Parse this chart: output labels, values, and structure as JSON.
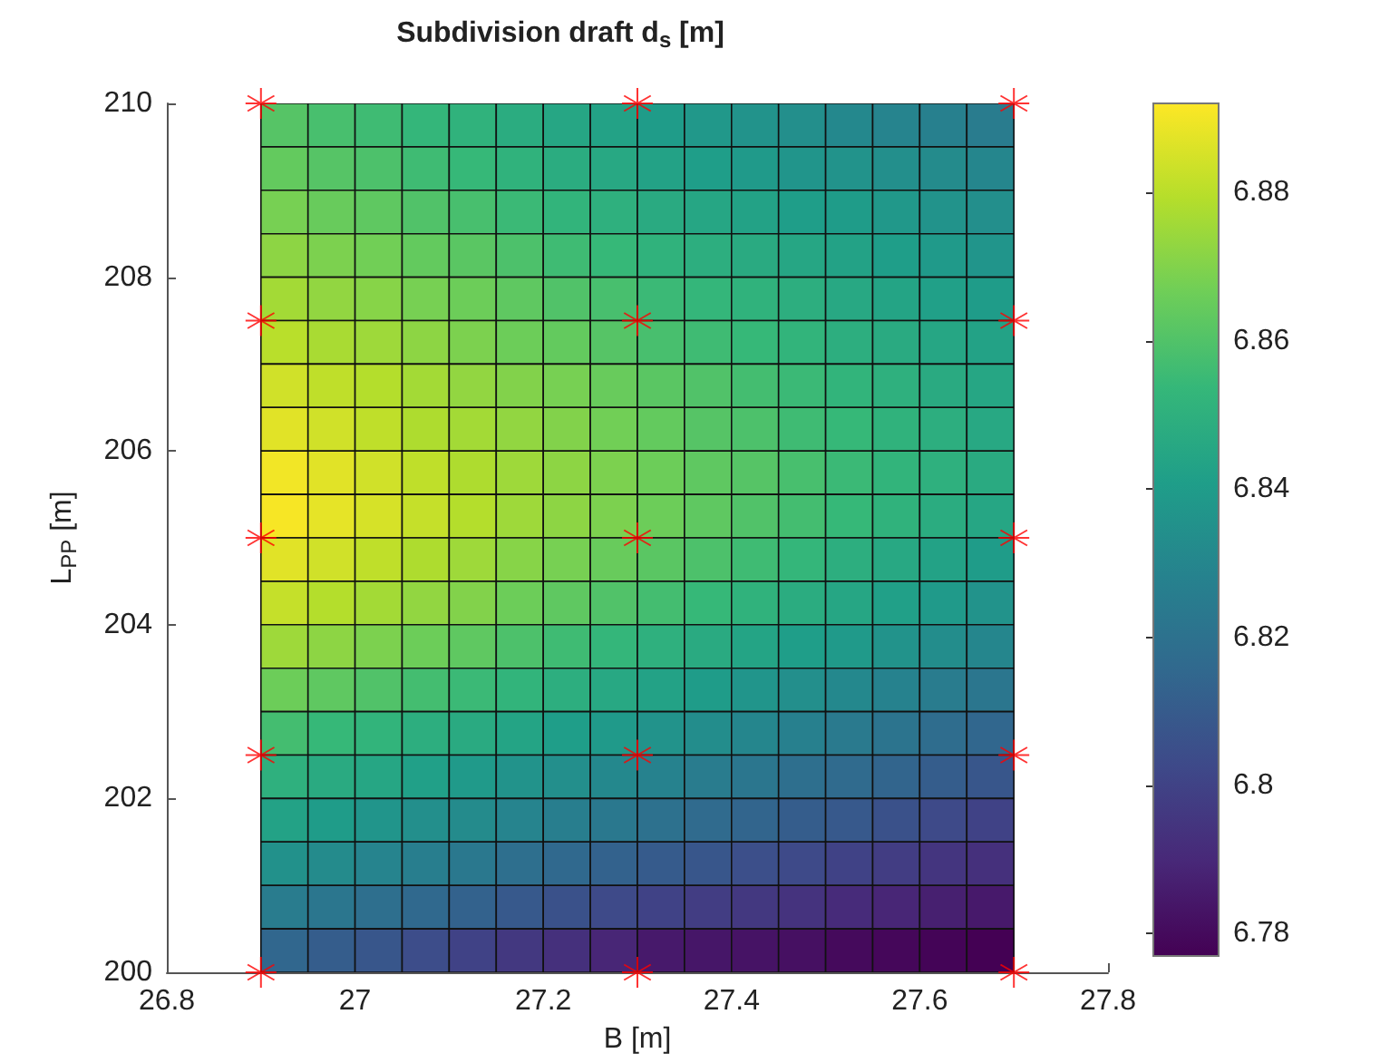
{
  "chart_data": {
    "type": "heatmap",
    "title": "Subdivision draft d$_{s}$ [m]",
    "xlabel": "B [m]",
    "ylabel": "L$_{PP}$ [m]",
    "x": [
      26.925,
      26.975,
      27.025,
      27.075,
      27.125,
      27.175,
      27.225,
      27.275,
      27.325,
      27.375,
      27.425,
      27.475,
      27.525,
      27.575,
      27.625,
      27.675
    ],
    "y": [
      209.75,
      209.25,
      208.75,
      208.25,
      207.75,
      207.25,
      206.75,
      206.25,
      205.75,
      205.25,
      204.75,
      204.25,
      203.75,
      203.25,
      202.75,
      202.25,
      201.75,
      201.25,
      200.75,
      200.25
    ],
    "cells": [
      [
        6.861,
        6.858,
        6.856,
        6.853,
        6.851,
        6.848,
        6.845,
        6.843,
        6.84,
        6.838,
        6.836,
        6.834,
        6.831,
        6.829,
        6.827,
        6.825
      ],
      [
        6.864,
        6.861,
        6.859,
        6.856,
        6.854,
        6.851,
        6.848,
        6.846,
        6.843,
        6.841,
        6.839,
        6.837,
        6.836,
        6.834,
        6.832,
        6.83
      ],
      [
        6.868,
        6.865,
        6.863,
        6.86,
        6.858,
        6.855,
        6.852,
        6.85,
        6.847,
        6.845,
        6.843,
        6.841,
        6.84,
        6.838,
        6.836,
        6.834
      ],
      [
        6.872,
        6.869,
        6.867,
        6.864,
        6.862,
        6.859,
        6.856,
        6.854,
        6.851,
        6.849,
        6.847,
        6.845,
        6.843,
        6.841,
        6.839,
        6.837
      ],
      [
        6.876,
        6.873,
        6.871,
        6.868,
        6.866,
        6.863,
        6.86,
        6.858,
        6.855,
        6.853,
        6.851,
        6.849,
        6.846,
        6.844,
        6.842,
        6.84
      ],
      [
        6.88,
        6.877,
        6.875,
        6.872,
        6.869,
        6.866,
        6.864,
        6.861,
        6.858,
        6.856,
        6.854,
        6.852,
        6.849,
        6.847,
        6.845,
        6.843
      ],
      [
        6.884,
        6.881,
        6.879,
        6.876,
        6.873,
        6.87,
        6.868,
        6.865,
        6.862,
        6.86,
        6.857,
        6.855,
        6.852,
        6.85,
        6.847,
        6.845
      ],
      [
        6.887,
        6.884,
        6.881,
        6.878,
        6.876,
        6.873,
        6.87,
        6.867,
        6.864,
        6.861,
        6.859,
        6.856,
        6.854,
        6.851,
        6.849,
        6.846
      ],
      [
        6.89,
        6.887,
        6.884,
        6.881,
        6.878,
        6.875,
        6.872,
        6.869,
        6.866,
        6.863,
        6.861,
        6.858,
        6.855,
        6.852,
        6.85,
        6.847
      ],
      [
        6.891,
        6.888,
        6.885,
        6.882,
        6.879,
        6.875,
        6.872,
        6.869,
        6.866,
        6.863,
        6.86,
        6.857,
        6.854,
        6.851,
        6.848,
        6.845
      ],
      [
        6.887,
        6.884,
        6.881,
        6.878,
        6.875,
        6.871,
        6.868,
        6.865,
        6.862,
        6.859,
        6.856,
        6.853,
        6.849,
        6.846,
        6.843,
        6.84
      ],
      [
        6.882,
        6.879,
        6.876,
        6.873,
        6.87,
        6.866,
        6.863,
        6.86,
        6.857,
        6.854,
        6.851,
        6.848,
        6.845,
        6.842,
        6.839,
        6.836
      ],
      [
        6.875,
        6.872,
        6.869,
        6.866,
        6.863,
        6.859,
        6.856,
        6.853,
        6.85,
        6.847,
        6.844,
        6.841,
        6.839,
        6.836,
        6.833,
        6.83
      ],
      [
        6.866,
        6.863,
        6.86,
        6.857,
        6.855,
        6.852,
        6.849,
        6.846,
        6.843,
        6.84,
        6.837,
        6.834,
        6.831,
        6.828,
        6.825,
        6.822
      ],
      [
        6.857,
        6.854,
        6.852,
        6.849,
        6.847,
        6.844,
        6.841,
        6.839,
        6.836,
        6.833,
        6.83,
        6.827,
        6.824,
        6.821,
        6.818,
        6.815
      ],
      [
        6.85,
        6.847,
        6.845,
        6.842,
        6.839,
        6.836,
        6.834,
        6.831,
        6.828,
        6.825,
        6.822,
        6.819,
        6.817,
        6.814,
        6.811,
        6.808
      ],
      [
        6.843,
        6.84,
        6.837,
        6.834,
        6.832,
        6.829,
        6.826,
        6.823,
        6.82,
        6.817,
        6.814,
        6.811,
        6.809,
        6.806,
        6.803,
        6.8
      ],
      [
        6.835,
        6.832,
        6.829,
        6.826,
        6.823,
        6.819,
        6.816,
        6.813,
        6.81,
        6.808,
        6.805,
        6.803,
        6.8,
        6.798,
        6.795,
        6.793
      ],
      [
        6.825,
        6.822,
        6.819,
        6.816,
        6.813,
        6.809,
        6.806,
        6.803,
        6.8,
        6.798,
        6.796,
        6.794,
        6.791,
        6.789,
        6.787,
        6.785
      ],
      [
        6.815,
        6.811,
        6.808,
        6.804,
        6.8,
        6.796,
        6.793,
        6.789,
        6.785,
        6.784,
        6.783,
        6.782,
        6.78,
        6.779,
        6.778,
        6.777
      ]
    ],
    "series": [
      {
        "type": "scatter",
        "color": "#ff0000",
        "marker": "cross",
        "x": [
          26.9,
          27.3,
          27.7,
          26.9,
          27.3,
          27.7,
          26.9,
          27.3,
          27.7,
          26.9,
          27.3,
          27.7,
          26.9,
          27.3,
          27.7
        ],
        "values": [
          200,
          200,
          200,
          202.5,
          202.5,
          202.5,
          205,
          205,
          205,
          207.5,
          207.5,
          207.5,
          210,
          210,
          210
        ]
      }
    ],
    "xlim": [
      26.8,
      27.8
    ],
    "xticks": [
      26.8,
      27,
      27.2,
      27.4,
      27.6,
      27.8
    ],
    "ylim": [
      200,
      210
    ],
    "yticks": [
      200,
      202,
      204,
      206,
      208,
      210
    ],
    "clim": [
      6.777,
      6.892
    ],
    "cticks": [
      6.78,
      6.8,
      6.82,
      6.84,
      6.86,
      6.88
    ],
    "grid": false
  }
}
